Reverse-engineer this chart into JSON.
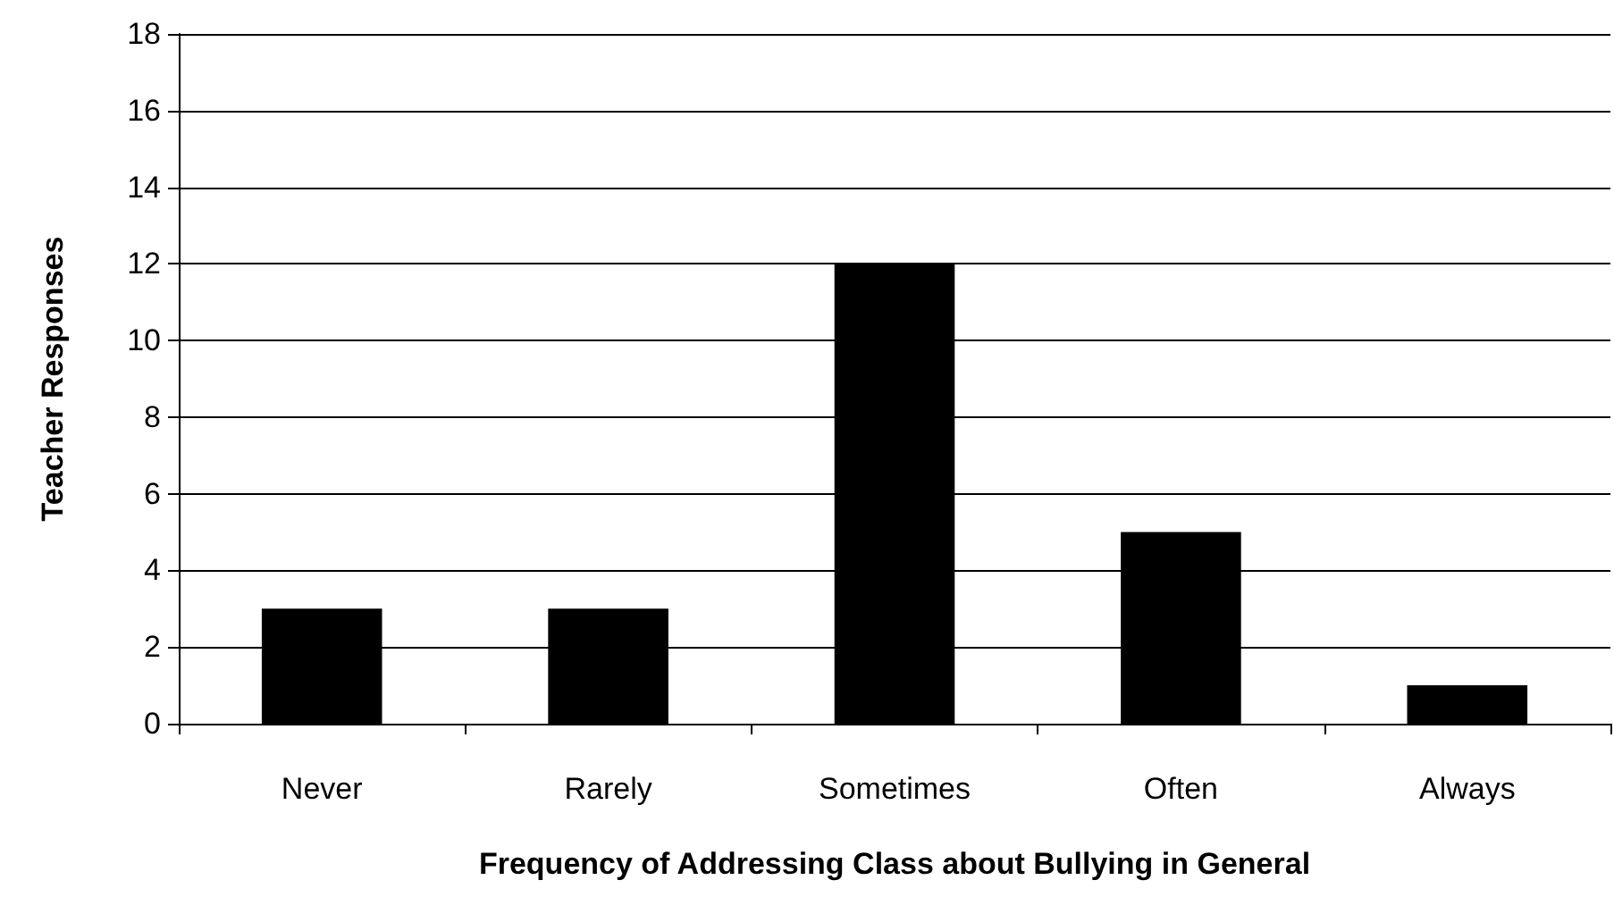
{
  "chart_data": {
    "type": "bar",
    "xlabel": "Frequency of Addressing Class about Bullying in General",
    "ylabel": "Teacher Responses",
    "categories": [
      "Never",
      "Rarely",
      "Sometimes",
      "Often",
      "Always"
    ],
    "values": [
      3,
      3,
      12,
      5,
      1
    ],
    "color": "#000000",
    "ylim": [
      0,
      18
    ],
    "yticks": [
      0,
      2,
      4,
      6,
      8,
      10,
      12,
      14,
      16,
      18
    ],
    "grid": "y"
  }
}
